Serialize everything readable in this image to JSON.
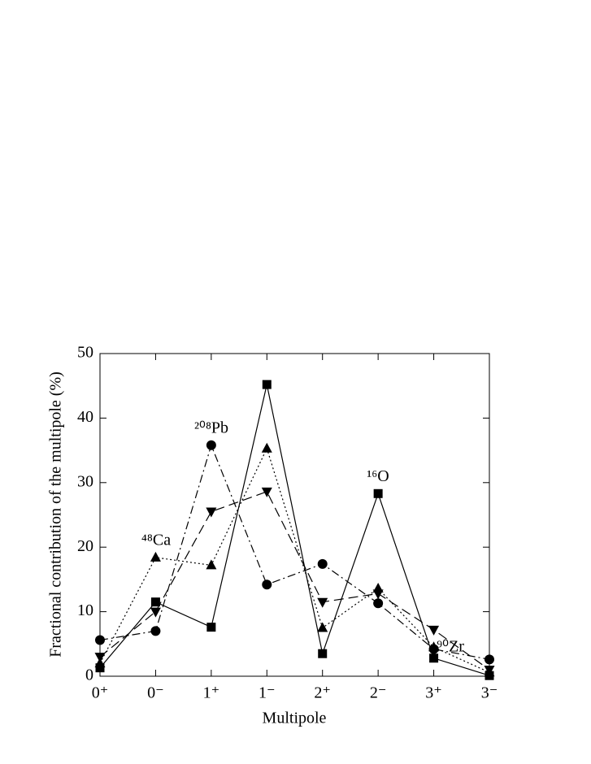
{
  "chart_data": {
    "type": "line",
    "x_label": "Multipole",
    "y_label": "Fractional contribution of the multipole (%)",
    "categories": [
      "0⁺",
      "0⁻",
      "1⁺",
      "1⁻",
      "2⁺",
      "2⁻",
      "3⁺",
      "3⁻"
    ],
    "ylim": [
      0,
      50
    ],
    "yticks": [
      0,
      10,
      20,
      30,
      40,
      50
    ],
    "series": [
      {
        "name": "¹⁶O",
        "color": "#000000",
        "marker": "square",
        "line_style": "solid",
        "values": [
          1.3,
          11.5,
          7.6,
          45.2,
          3.5,
          28.3,
          2.8,
          0.1
        ]
      },
      {
        "name": "²⁰⁸Pb",
        "color": "#000000",
        "marker": "circle",
        "line_style": "dashdot",
        "values": [
          5.6,
          7.0,
          35.8,
          14.2,
          17.4,
          11.3,
          4.2,
          2.6
        ]
      },
      {
        "name": "⁴⁸Ca",
        "color": "#000000",
        "marker": "triangle-up",
        "line_style": "dotted",
        "values": [
          2.0,
          18.4,
          17.2,
          35.3,
          7.5,
          13.6,
          4.5,
          0.6
        ]
      },
      {
        "name": "⁹⁰Zr",
        "color": "#000000",
        "marker": "triangle-down",
        "line_style": "dashed",
        "values": [
          3.0,
          10.0,
          25.5,
          28.6,
          11.5,
          12.8,
          7.2,
          1.0
        ]
      }
    ]
  }
}
